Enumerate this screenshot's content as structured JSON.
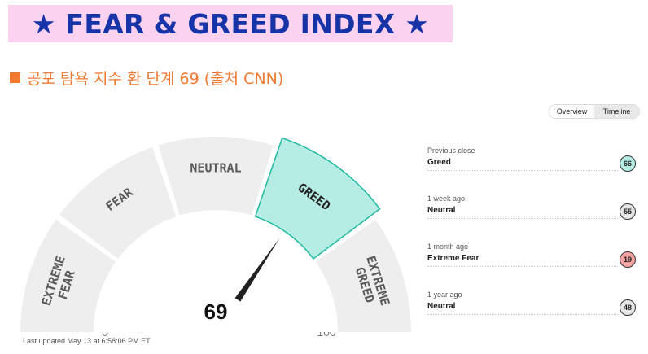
{
  "banner": {
    "title": "★ FEAR & GREED INDEX ★"
  },
  "subtitle": "공포 탐욕 지수 환 단계 69 (출처 CNN)",
  "toggle": {
    "overview": "Overview",
    "timeline": "Timeline"
  },
  "gauge": {
    "value": 69,
    "value_text": "69",
    "segments": [
      "EXTREME FEAR",
      "FEAR",
      "NEUTRAL",
      "GREED",
      "EXTREME GREED"
    ],
    "active_segment": "GREED",
    "scale": {
      "min": 0,
      "max": 100,
      "ticks": [
        "0",
        "25",
        "50",
        "75",
        "100"
      ]
    },
    "colors": {
      "segment": "#eeeeee",
      "active": "#b5ece3",
      "active_border": "#21b9a2",
      "needle": "#1f1f1f",
      "label": "#5a5a5a"
    }
  },
  "last_updated": "Last updated May 13 at 6:58:06 PM ET",
  "history": [
    {
      "label": "Previous close",
      "value": "Greed",
      "score": "66",
      "color": "#b5ece3"
    },
    {
      "label": "1 week ago",
      "value": "Neutral",
      "score": "55",
      "color": "#e6e6e6"
    },
    {
      "label": "1 month ago",
      "value": "Extreme Fear",
      "score": "19",
      "color": "#f5a3a3"
    },
    {
      "label": "1 year ago",
      "value": "Neutral",
      "score": "48",
      "color": "#e6e6e6"
    }
  ]
}
